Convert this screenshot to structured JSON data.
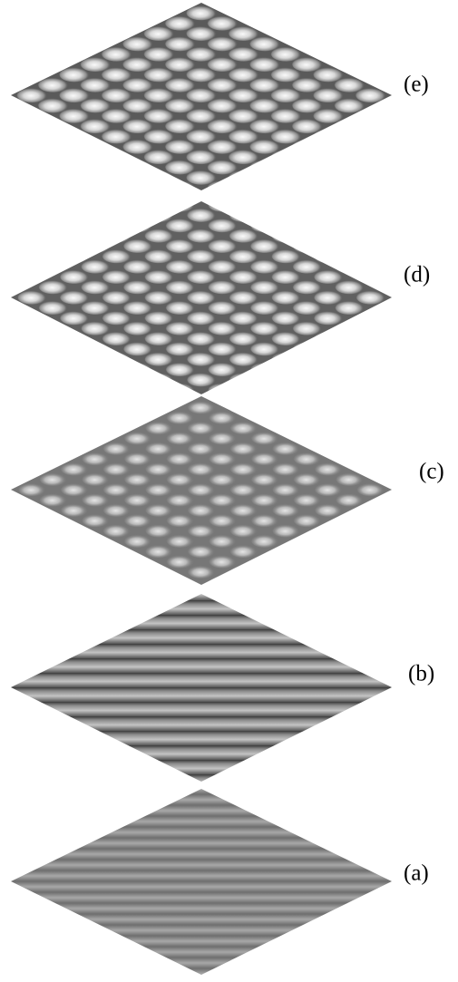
{
  "panels": [
    {
      "label": "(e)"
    },
    {
      "label": "(d)"
    },
    {
      "label": "(c)"
    },
    {
      "label": "(b)"
    },
    {
      "label": "(a)"
    }
  ]
}
